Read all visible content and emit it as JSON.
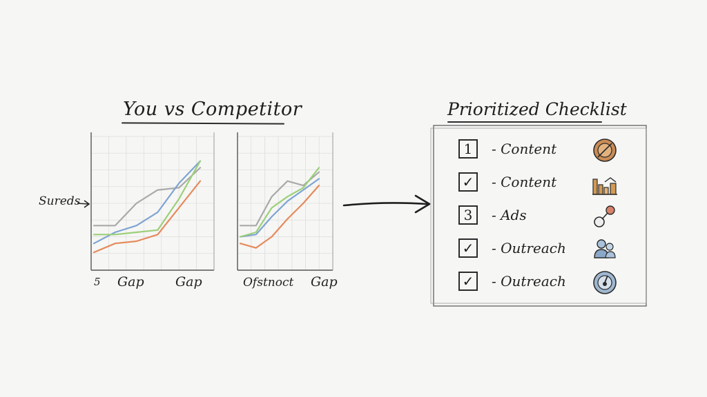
{
  "left_panel": {
    "title": "You vs Competitor",
    "y_label": "Sureds",
    "x_labels": [
      {
        "text": "5"
      },
      {
        "text": "Gap"
      },
      {
        "text": "Gap"
      },
      {
        "text": "Ofstnoct"
      },
      {
        "text": "Gap"
      }
    ]
  },
  "right_panel": {
    "title": "Prioritized Checklist",
    "items": [
      {
        "box": "1",
        "label": "- Content",
        "icon": "target-icon",
        "icon_color": "#c98c54"
      },
      {
        "box": "✓",
        "label": "- Content",
        "icon": "bar-chart-icon",
        "icon_color": "#d29a55"
      },
      {
        "box": "3",
        "label": "- Ads",
        "icon": "link-icon",
        "icon_color": "#d9826b"
      },
      {
        "box": "✓",
        "label": "- Outreach",
        "icon": "users-icon",
        "icon_color": "#8aa8c8"
      },
      {
        "box": "✓",
        "label": "- Outreach",
        "icon": "gauge-icon",
        "icon_color": "#7e9dbd"
      }
    ]
  },
  "colors": {
    "gray_line": "#a9a9a9",
    "blue_line": "#7ea4d3",
    "green_line": "#9ccf7a",
    "orange_line": "#e58a5c",
    "ink": "#232323"
  },
  "chart_data": [
    {
      "type": "line",
      "x": [
        0,
        1,
        2,
        3,
        4,
        5
      ],
      "series": [
        {
          "values": [
            2,
            2,
            3,
            3.6,
            3.7,
            4.6
          ]
        },
        {
          "values": [
            1.2,
            1.7,
            2.0,
            2.6,
            3.9,
            4.9
          ]
        },
        {
          "values": [
            1.6,
            1.6,
            1.7,
            1.8,
            3.2,
            4.9
          ]
        },
        {
          "values": [
            0.8,
            1.2,
            1.3,
            1.6,
            2.8,
            4.0
          ]
        }
      ],
      "ylim": [
        0,
        6
      ]
    },
    {
      "type": "line",
      "x": [
        0,
        1,
        2,
        3,
        4,
        5
      ],
      "series": [
        {
          "values": [
            2,
            2,
            3.3,
            4.0,
            3.8,
            4.4
          ]
        },
        {
          "values": [
            1.5,
            1.6,
            2.4,
            3.1,
            3.6,
            4.1
          ]
        },
        {
          "values": [
            1.5,
            1.7,
            2.8,
            3.3,
            3.7,
            4.6
          ]
        },
        {
          "values": [
            1.2,
            1.0,
            1.5,
            2.3,
            3.0,
            3.8
          ]
        }
      ],
      "ylim": [
        0,
        6
      ]
    }
  ]
}
